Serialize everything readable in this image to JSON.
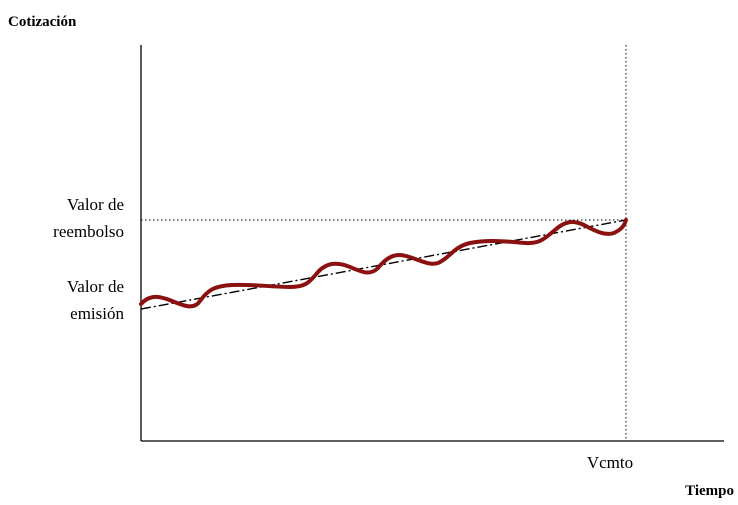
{
  "labels": {
    "y_axis": "Cotización",
    "x_axis": "Tiempo",
    "maturity": "Vcmto",
    "redemption_line1": "Valor de",
    "redemption_line2": "reembolso",
    "issue_line1": "Valor de",
    "issue_line2": "emisión"
  },
  "colors": {
    "axis": "#000000",
    "price_curve": "#8b1010",
    "trend_line": "#000000",
    "guide_line": "#000000"
  }
}
